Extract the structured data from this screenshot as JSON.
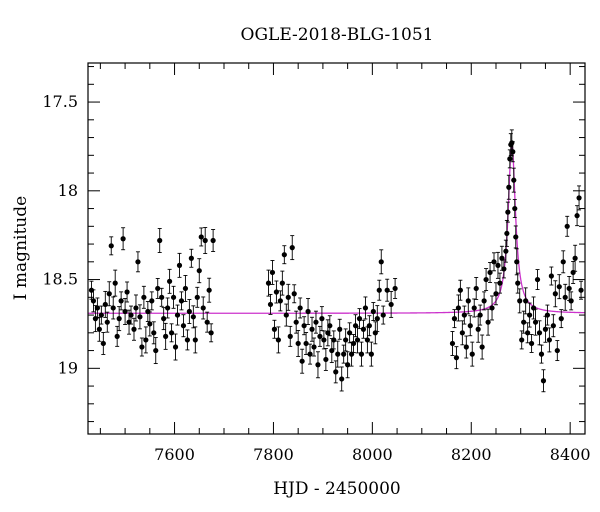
{
  "chart_data": {
    "type": "scatter",
    "title": "OGLE-2018-BLG-1051",
    "xlabel": "HJD - 2450000",
    "ylabel": "I magnitude",
    "xlim": [
      7425,
      8430
    ],
    "ylim": [
      19.37,
      17.28
    ],
    "y_inverted": true,
    "grid": false,
    "x_ticks": [
      7600,
      7800,
      8000,
      8200,
      8400
    ],
    "y_ticks": [
      17.5,
      18,
      18.5,
      19
    ],
    "y_tick_labels": [
      "17.5",
      "18",
      "18.5",
      "19"
    ],
    "x_minor_step": 50,
    "y_minor_step": 0.1,
    "baseline_mag": 18.69,
    "model_color": "#cc33cc",
    "marker_color": "#000000",
    "series": [
      {
        "type": "data_with_errorbars",
        "points": [
          [
            7432,
            18.56
          ],
          [
            7436,
            18.62
          ],
          [
            7440,
            18.72
          ],
          [
            7444,
            18.66
          ],
          [
            7448,
            18.78
          ],
          [
            7452,
            18.7
          ],
          [
            7456,
            18.86
          ],
          [
            7460,
            18.64
          ],
          [
            7464,
            18.74
          ],
          [
            7468,
            18.58
          ],
          [
            7472,
            18.31
          ],
          [
            7476,
            18.66
          ],
          [
            7480,
            18.52
          ],
          [
            7484,
            18.82
          ],
          [
            7488,
            18.72
          ],
          [
            7492,
            18.62
          ],
          [
            7496,
            18.27
          ],
          [
            7500,
            18.68
          ],
          [
            7504,
            18.57
          ],
          [
            7508,
            18.74
          ],
          [
            7512,
            18.7
          ],
          [
            7518,
            18.78
          ],
          [
            7522,
            18.66
          ],
          [
            7526,
            18.4
          ],
          [
            7530,
            18.71
          ],
          [
            7534,
            18.88
          ],
          [
            7538,
            18.6
          ],
          [
            7542,
            18.84
          ],
          [
            7546,
            18.68
          ],
          [
            7550,
            18.75
          ],
          [
            7554,
            18.62
          ],
          [
            7558,
            18.8
          ],
          [
            7562,
            18.9
          ],
          [
            7566,
            18.55
          ],
          [
            7570,
            18.28
          ],
          [
            7574,
            18.6
          ],
          [
            7578,
            18.72
          ],
          [
            7582,
            18.82
          ],
          [
            7586,
            18.66
          ],
          [
            7590,
            18.51
          ],
          [
            7594,
            18.8
          ],
          [
            7598,
            18.6
          ],
          [
            7602,
            18.88
          ],
          [
            7606,
            18.7
          ],
          [
            7610,
            18.42
          ],
          [
            7614,
            18.62
          ],
          [
            7618,
            18.76
          ],
          [
            7622,
            18.55
          ],
          [
            7626,
            18.84
          ],
          [
            7630,
            18.68
          ],
          [
            7634,
            18.38
          ],
          [
            7638,
            18.71
          ],
          [
            7642,
            18.84
          ],
          [
            7646,
            18.6
          ],
          [
            7650,
            18.45
          ],
          [
            7654,
            18.26
          ],
          [
            7658,
            18.66
          ],
          [
            7662,
            18.28
          ],
          [
            7666,
            18.74
          ],
          [
            7670,
            18.56
          ],
          [
            7674,
            18.8
          ],
          [
            7678,
            18.28
          ],
          [
            7790,
            18.52
          ],
          [
            7794,
            18.64
          ],
          [
            7798,
            18.46
          ],
          [
            7802,
            18.78
          ],
          [
            7806,
            18.57
          ],
          [
            7810,
            18.84
          ],
          [
            7814,
            18.62
          ],
          [
            7818,
            18.52
          ],
          [
            7822,
            18.36
          ],
          [
            7826,
            18.7
          ],
          [
            7830,
            18.6
          ],
          [
            7834,
            18.82
          ],
          [
            7838,
            18.32
          ],
          [
            7842,
            18.58
          ],
          [
            7846,
            18.74
          ],
          [
            7850,
            18.86
          ],
          [
            7854,
            18.66
          ],
          [
            7858,
            18.96
          ],
          [
            7862,
            18.76
          ],
          [
            7866,
            18.86
          ],
          [
            7870,
            18.68
          ],
          [
            7874,
            18.92
          ],
          [
            7878,
            18.78
          ],
          [
            7882,
            18.88
          ],
          [
            7886,
            18.74
          ],
          [
            7890,
            18.98
          ],
          [
            7894,
            18.82
          ],
          [
            7898,
            18.72
          ],
          [
            7902,
            18.84
          ],
          [
            7906,
            18.95
          ],
          [
            7910,
            18.8
          ],
          [
            7914,
            18.76
          ],
          [
            7918,
            18.9
          ],
          [
            7922,
            18.84
          ],
          [
            7926,
            19.02
          ],
          [
            7930,
            18.92
          ],
          [
            7934,
            18.78
          ],
          [
            7938,
            19.06
          ],
          [
            7942,
            18.92
          ],
          [
            7946,
            18.84
          ],
          [
            7950,
            18.98
          ],
          [
            7954,
            18.8
          ],
          [
            7958,
            18.92
          ],
          [
            7962,
            18.86
          ],
          [
            7966,
            18.76
          ],
          [
            7970,
            18.84
          ],
          [
            7974,
            18.72
          ],
          [
            7978,
            18.92
          ],
          [
            7982,
            18.78
          ],
          [
            7986,
            18.66
          ],
          [
            7990,
            18.84
          ],
          [
            7994,
            18.76
          ],
          [
            7998,
            18.92
          ],
          [
            8002,
            18.68
          ],
          [
            8006,
            18.8
          ],
          [
            8010,
            18.72
          ],
          [
            8014,
            18.56
          ],
          [
            8018,
            18.4
          ],
          [
            8022,
            18.7
          ],
          [
            8030,
            18.56
          ],
          [
            8038,
            18.64
          ],
          [
            8046,
            18.55
          ],
          [
            8162,
            18.86
          ],
          [
            8166,
            18.72
          ],
          [
            8170,
            18.94
          ],
          [
            8174,
            18.66
          ],
          [
            8178,
            18.56
          ],
          [
            8182,
            18.8
          ],
          [
            8186,
            18.7
          ],
          [
            8190,
            18.88
          ],
          [
            8194,
            18.62
          ],
          [
            8198,
            18.76
          ],
          [
            8202,
            18.92
          ],
          [
            8206,
            18.66
          ],
          [
            8210,
            18.55
          ],
          [
            8214,
            18.78
          ],
          [
            8218,
            18.7
          ],
          [
            8222,
            18.88
          ],
          [
            8226,
            18.62
          ],
          [
            8230,
            18.5
          ],
          [
            8234,
            18.74
          ],
          [
            8238,
            18.46
          ],
          [
            8242,
            18.66
          ],
          [
            8246,
            18.4
          ],
          [
            8250,
            18.58
          ],
          [
            8254,
            18.42
          ],
          [
            8258,
            18.52
          ],
          [
            8262,
            18.38
          ],
          [
            8266,
            18.44
          ],
          [
            8270,
            18.34
          ],
          [
            8272,
            18.24
          ],
          [
            8274,
            18.12
          ],
          [
            8276,
            17.98
          ],
          [
            8278,
            17.82
          ],
          [
            8280,
            17.74
          ],
          [
            8282,
            17.73
          ],
          [
            8284,
            17.78
          ],
          [
            8286,
            17.94
          ],
          [
            8288,
            18.1
          ],
          [
            8290,
            18.26
          ],
          [
            8292,
            18.4
          ],
          [
            8294,
            18.52
          ],
          [
            8298,
            18.62
          ],
          [
            8302,
            18.84
          ],
          [
            8306,
            18.74
          ],
          [
            8310,
            18.62
          ],
          [
            8314,
            18.8
          ],
          [
            8318,
            18.7
          ],
          [
            8322,
            18.86
          ],
          [
            8326,
            18.66
          ],
          [
            8330,
            18.74
          ],
          [
            8334,
            18.5
          ],
          [
            8338,
            18.8
          ],
          [
            8342,
            18.92
          ],
          [
            8346,
            19.07
          ],
          [
            8350,
            18.78
          ],
          [
            8354,
            18.7
          ],
          [
            8358,
            18.84
          ],
          [
            8362,
            18.48
          ],
          [
            8366,
            18.76
          ],
          [
            8370,
            18.58
          ],
          [
            8374,
            18.9
          ],
          [
            8378,
            18.54
          ],
          [
            8382,
            18.72
          ],
          [
            8386,
            18.4
          ],
          [
            8390,
            18.6
          ],
          [
            8394,
            18.2
          ],
          [
            8398,
            18.55
          ],
          [
            8402,
            18.62
          ],
          [
            8406,
            18.46
          ],
          [
            8410,
            18.38
          ],
          [
            8414,
            18.14
          ],
          [
            8418,
            18.04
          ],
          [
            8422,
            18.56
          ]
        ]
      },
      {
        "type": "model_curve",
        "baseline": 18.69,
        "peak_x": 8282,
        "peak_mag": 17.73,
        "width_days": 9
      }
    ]
  }
}
